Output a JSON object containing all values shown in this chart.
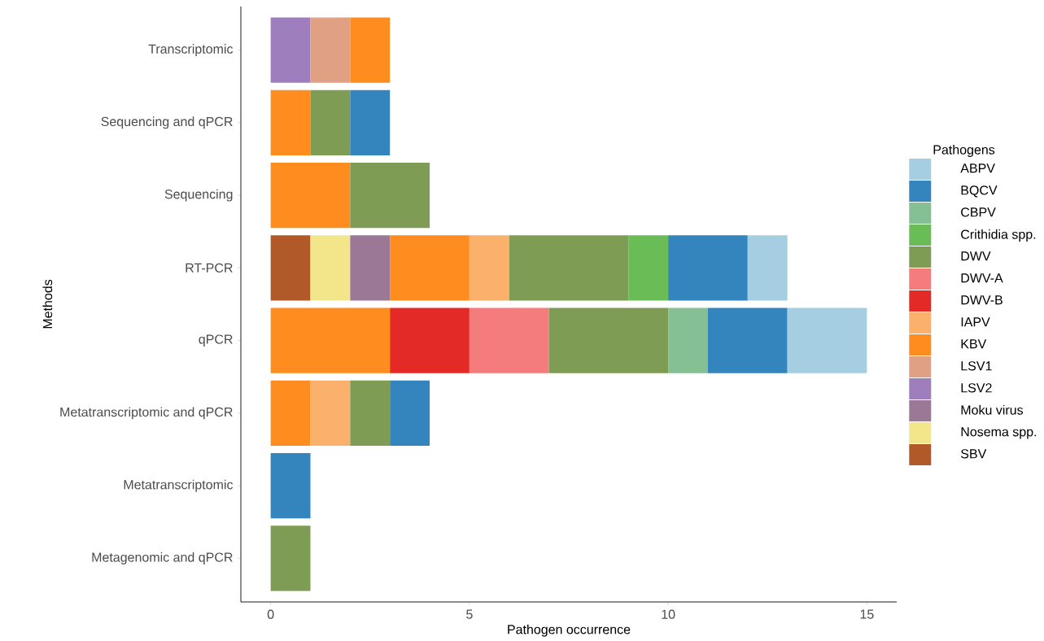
{
  "chart_data": {
    "type": "bar",
    "orientation": "horizontal",
    "stacked": true,
    "xlabel": "Pathogen occurrence",
    "ylabel": "Methods",
    "legend_title": "Pathogens",
    "legend": "right",
    "grid": false,
    "categories": [
      "Transcriptomic",
      "Sequencing and qPCR",
      "Sequencing",
      "RT-PCR",
      "qPCR",
      "Metatranscriptomic and qPCR",
      "Metatranscriptomic",
      "Metagenomic and qPCR"
    ],
    "xlim": [
      -0.75,
      15.75
    ],
    "xticks": [
      0,
      5,
      10,
      15
    ],
    "series": [
      {
        "name": "SBV",
        "color": "#b15928",
        "values": [
          null,
          null,
          null,
          1,
          null,
          null,
          null,
          null
        ]
      },
      {
        "name": "Nosema spp.",
        "color": "#f3e58a",
        "values": [
          null,
          null,
          null,
          1,
          null,
          null,
          null,
          null
        ]
      },
      {
        "name": "Moku virus",
        "color": "#9a7896",
        "values": [
          null,
          null,
          null,
          1,
          null,
          null,
          null,
          null
        ]
      },
      {
        "name": "LSV2",
        "color": "#9e7ebd",
        "values": [
          1,
          null,
          null,
          null,
          null,
          null,
          null,
          null
        ]
      },
      {
        "name": "LSV1",
        "color": "#e0a084",
        "values": [
          1,
          null,
          null,
          null,
          null,
          null,
          null,
          null
        ]
      },
      {
        "name": "KBV",
        "color": "#fe8c1f",
        "values": [
          1,
          1,
          2,
          2,
          3,
          1,
          null,
          null
        ]
      },
      {
        "name": "IAPV",
        "color": "#fbb06b",
        "values": [
          null,
          null,
          null,
          1,
          null,
          1,
          null,
          null
        ]
      },
      {
        "name": "DWV-B",
        "color": "#e42a26",
        "values": [
          null,
          null,
          null,
          null,
          2,
          null,
          null,
          null
        ]
      },
      {
        "name": "DWV-A",
        "color": "#f47c7c",
        "values": [
          null,
          null,
          null,
          null,
          2,
          null,
          null,
          null
        ]
      },
      {
        "name": "DWV",
        "color": "#7f9c55",
        "values": [
          null,
          1,
          2,
          3,
          3,
          1,
          null,
          1
        ]
      },
      {
        "name": "Crithidia spp.",
        "color": "#6abd56",
        "values": [
          null,
          null,
          null,
          1,
          null,
          null,
          null,
          null
        ]
      },
      {
        "name": "CBPV",
        "color": "#85bf94",
        "values": [
          null,
          null,
          null,
          null,
          1,
          null,
          null,
          null
        ]
      },
      {
        "name": "BQCV",
        "color": "#3484be",
        "values": [
          null,
          1,
          null,
          2,
          2,
          1,
          1,
          null
        ]
      },
      {
        "name": "ABPV",
        "color": "#a6cee3",
        "values": [
          null,
          null,
          null,
          1,
          2,
          null,
          null,
          null
        ]
      }
    ]
  }
}
